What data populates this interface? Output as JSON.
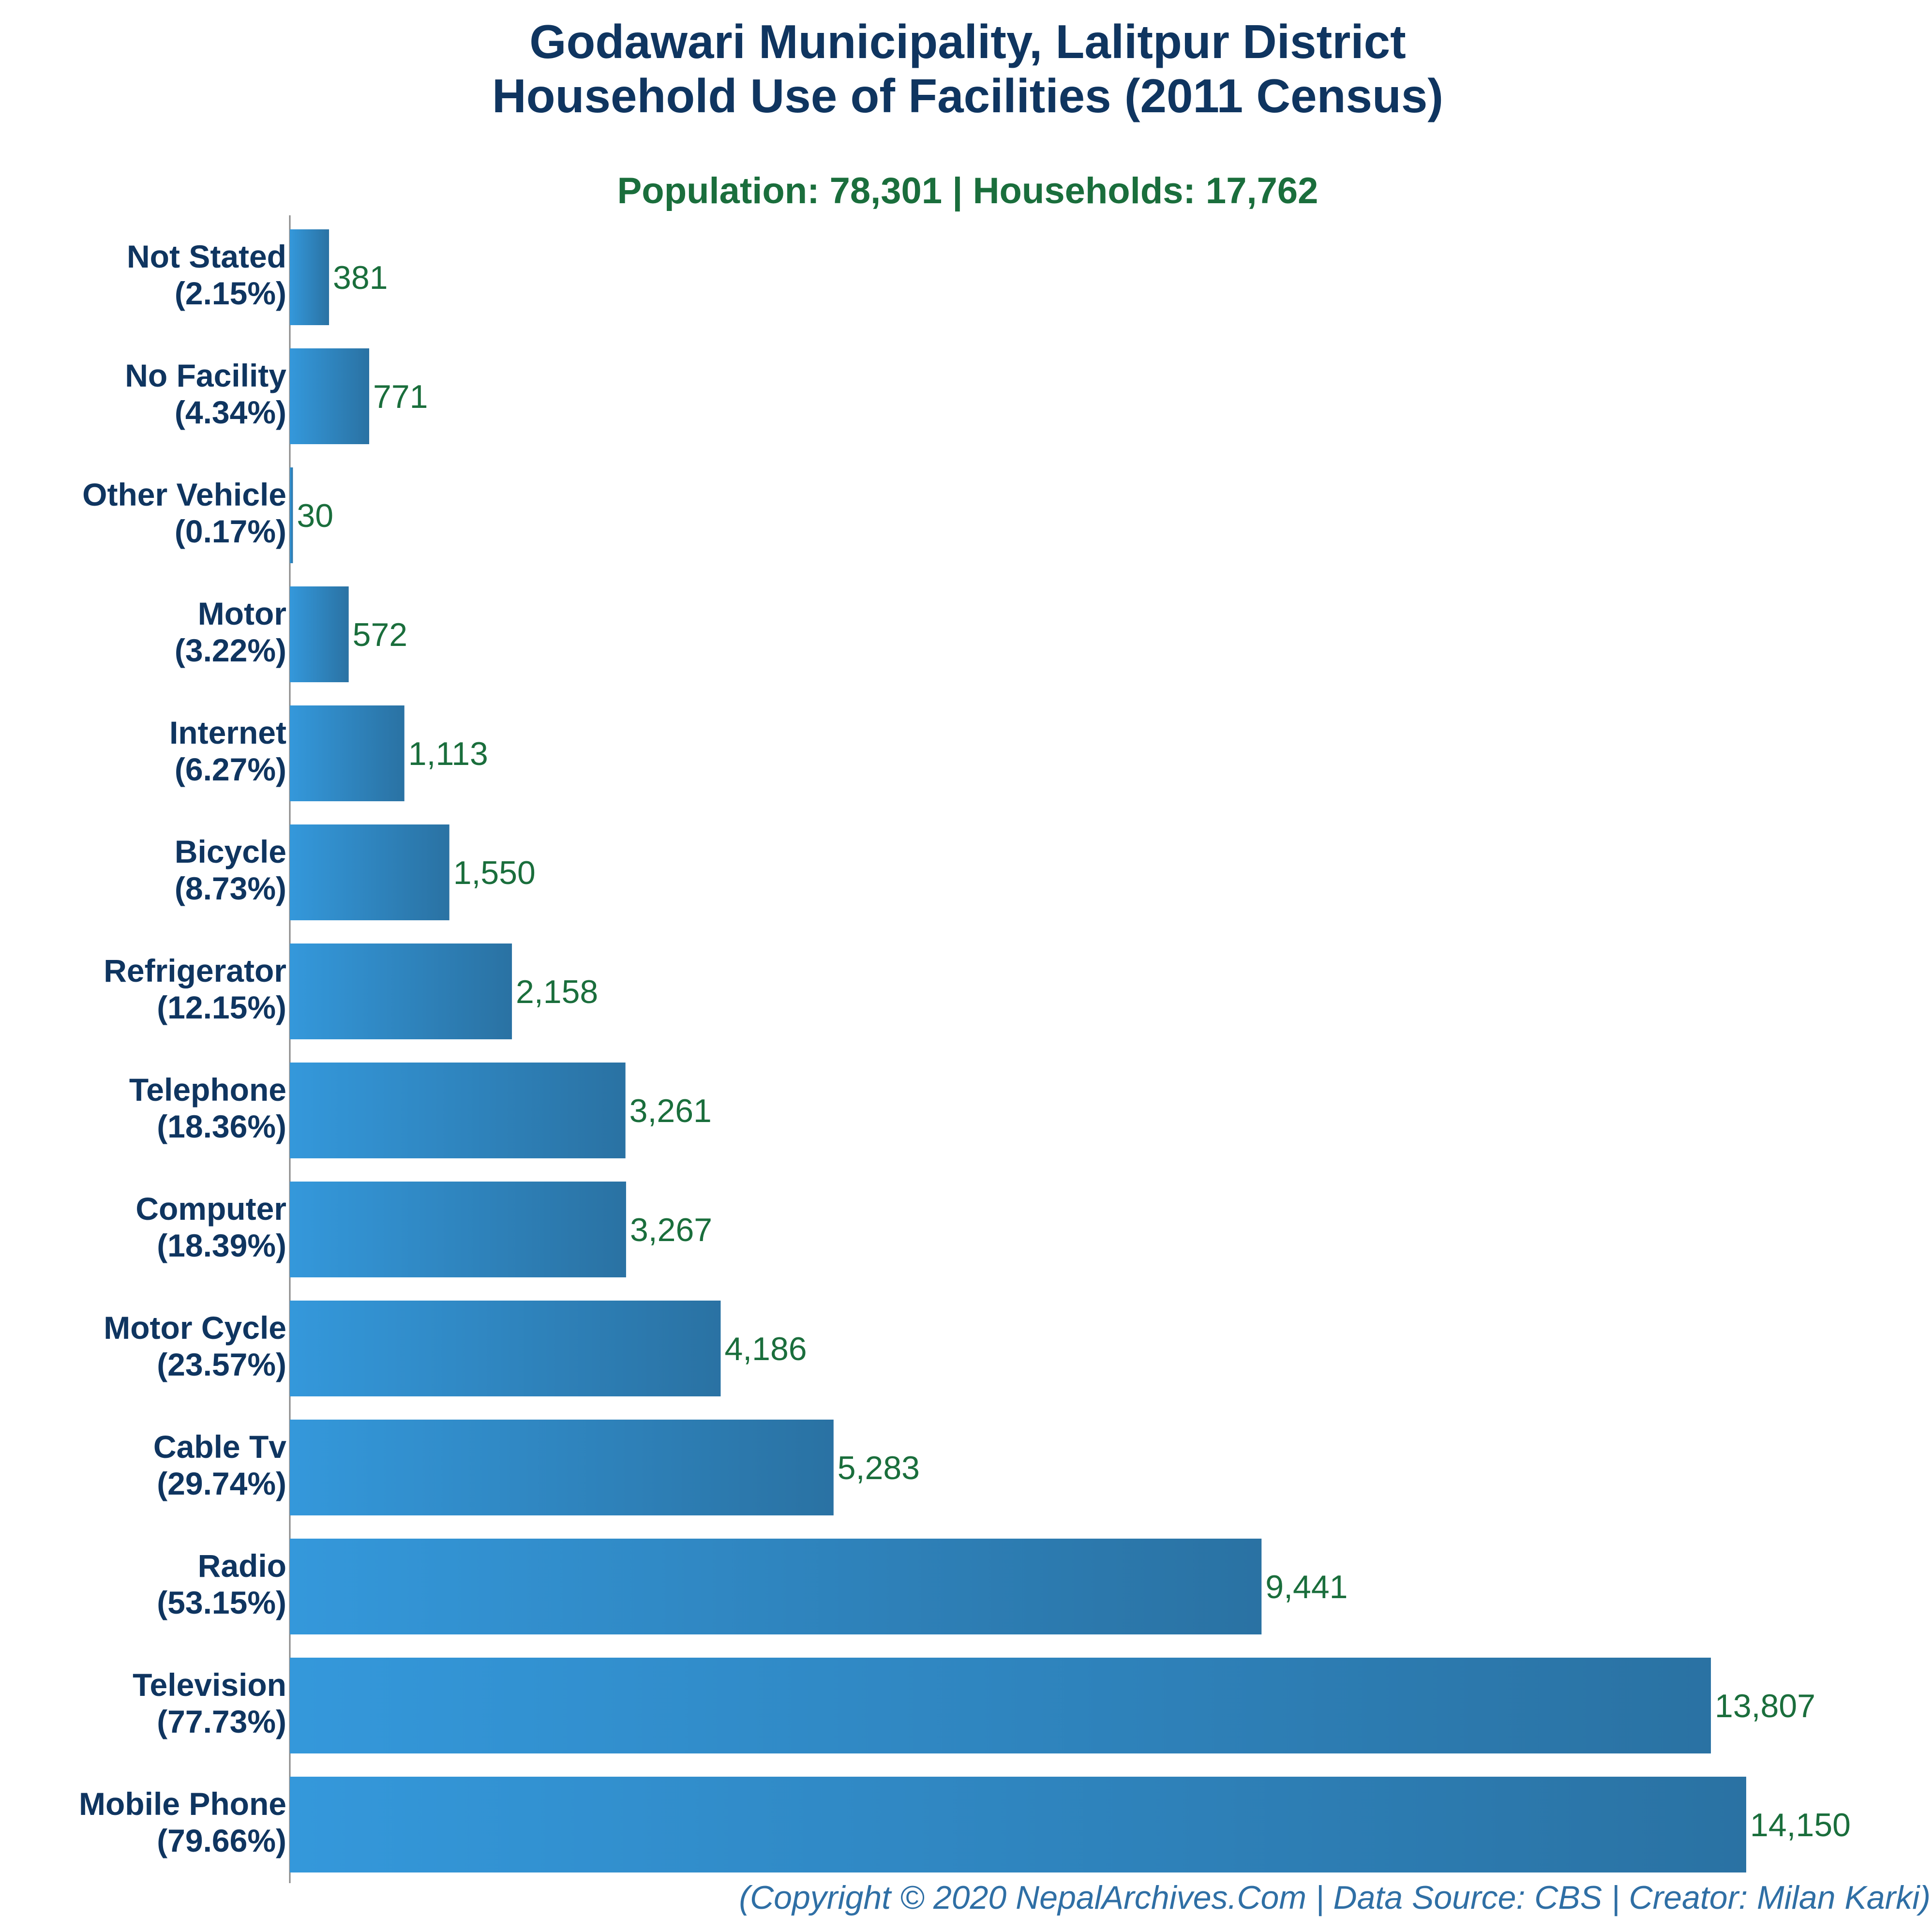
{
  "chart_data": {
    "type": "bar",
    "orientation": "horizontal",
    "title": [
      "Godawari Municipality, Lalitpur District",
      "Household Use of Facilities (2011 Census)"
    ],
    "subtitle": "Population: 78,301 | Households: 17,762",
    "categories": [
      {
        "name": "Not Stated",
        "pct": "(2.15%)"
      },
      {
        "name": "No Facility",
        "pct": "(4.34%)"
      },
      {
        "name": "Other Vehicle",
        "pct": "(0.17%)"
      },
      {
        "name": "Motor",
        "pct": "(3.22%)"
      },
      {
        "name": "Internet",
        "pct": "(6.27%)"
      },
      {
        "name": "Bicycle",
        "pct": "(8.73%)"
      },
      {
        "name": "Refrigerator",
        "pct": "(12.15%)"
      },
      {
        "name": "Telephone",
        "pct": "(18.36%)"
      },
      {
        "name": "Computer",
        "pct": "(18.39%)"
      },
      {
        "name": "Motor Cycle",
        "pct": "(23.57%)"
      },
      {
        "name": "Cable Tv",
        "pct": "(29.74%)"
      },
      {
        "name": "Radio",
        "pct": "(53.15%)"
      },
      {
        "name": "Television",
        "pct": "(77.73%)"
      },
      {
        "name": "Mobile Phone",
        "pct": "(79.66%)"
      }
    ],
    "values": [
      381,
      771,
      30,
      572,
      1113,
      1550,
      2158,
      3261,
      3267,
      4186,
      5283,
      9441,
      13807,
      14150
    ],
    "value_labels": [
      "381",
      "771",
      "30",
      "572",
      "1,113",
      "1,550",
      "2,158",
      "3,261",
      "3,267",
      "4,186",
      "5,283",
      "9,441",
      "13,807",
      "14,150"
    ],
    "xlim": [
      0,
      15500
    ],
    "grid": false,
    "legend": "none",
    "colors": {
      "bar_start": "#3498db",
      "bar_end": "#2a72a3",
      "title": "#0f3560",
      "subtitle": "#1a6e3c",
      "value": "#1a6e3c",
      "credit": "#2f6fa5",
      "axis": "#888888"
    }
  },
  "credit": "(Copyright © 2020 NepalArchives.Com | Data Source: CBS | Creator: Milan Karki)"
}
